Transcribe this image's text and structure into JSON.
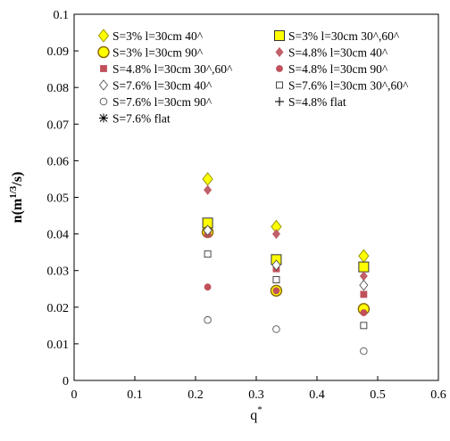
{
  "chart_data": {
    "type": "scatter",
    "xlabel": "q",
    "xlabel_sup": "*",
    "ylabel": "n(m",
    "ylabel_sup": "1/3",
    "ylabel_end": "/s)",
    "xlim": [
      0,
      0.6
    ],
    "ylim": [
      0,
      0.1
    ],
    "x_ticks": [
      "0",
      "0.1",
      "0.2",
      "0.3",
      "0.4",
      "0.5",
      "0.6"
    ],
    "y_ticks": [
      "0",
      "0.01",
      "0.02",
      "0.03",
      "0.04",
      "0.05",
      "0.06",
      "0.07",
      "0.08",
      "0.09",
      "0.1"
    ],
    "grid": false,
    "legend_position": "top",
    "series": [
      {
        "name": "S=3% l=30cm 40^",
        "marker": "diamond",
        "fill": "#ffff00",
        "stroke": "#999900",
        "x": [
          0.22,
          0.333,
          0.477
        ],
        "y": [
          0.055,
          0.042,
          0.034
        ]
      },
      {
        "name": "S=3% l=30cm 30^,60^",
        "marker": "square",
        "fill": "#ffff00",
        "stroke": "#333333",
        "x": [
          0.22,
          0.333,
          0.477
        ],
        "y": [
          0.043,
          0.033,
          0.031
        ]
      },
      {
        "name": "S=3% l=30cm 90^",
        "marker": "circle",
        "fill": "#ffff00",
        "stroke": "#886600",
        "x": [
          0.22,
          0.333,
          0.477
        ],
        "y": [
          0.0405,
          0.0245,
          0.0195
        ]
      },
      {
        "name": "S=4.8% l=30cm 40^",
        "marker": "diamond-small",
        "fill": "#c0606a",
        "stroke": "#c0606a",
        "x": [
          0.22,
          0.333,
          0.477
        ],
        "y": [
          0.052,
          0.04,
          0.0285
        ]
      },
      {
        "name": "S=4.8% l=30cm 30^,60^",
        "marker": "square-small",
        "fill": "#c0505a",
        "stroke": "#c0505a",
        "x": [
          0.22,
          0.333,
          0.477
        ],
        "y": [
          0.04,
          0.0305,
          0.0235
        ]
      },
      {
        "name": "S=4.8% l=30cm 90^",
        "marker": "circle-small",
        "fill": "#c0505a",
        "stroke": "#c0505a",
        "x": [
          0.22,
          0.333,
          0.477
        ],
        "y": [
          0.0255,
          0.0245,
          0.0185
        ]
      },
      {
        "name": "S=7.6% l=30cm 40^",
        "marker": "diamond-open",
        "fill": "#ffffff",
        "stroke": "#555555",
        "x": [
          0.22,
          0.333,
          0.477
        ],
        "y": [
          0.041,
          0.0315,
          0.026
        ]
      },
      {
        "name": "S=7.6% l=30cm 30^,60^",
        "marker": "square-open",
        "fill": "#ffffff",
        "stroke": "#333333",
        "x": [
          0.22,
          0.333,
          0.477
        ],
        "y": [
          0.0345,
          0.0275,
          0.015
        ]
      },
      {
        "name": "S=7.6% l=30cm 90^",
        "marker": "circle-open",
        "fill": "#ffffff",
        "stroke": "#555555",
        "x": [
          0.22,
          0.333,
          0.477
        ],
        "y": [
          0.0165,
          0.014,
          0.008
        ]
      },
      {
        "name": "S=4.8% flat",
        "marker": "plus",
        "fill": "none",
        "stroke": "#000000",
        "x": [],
        "y": []
      },
      {
        "name": "S=7.6% flat",
        "marker": "star",
        "fill": "none",
        "stroke": "#000000",
        "x": [],
        "y": []
      }
    ]
  }
}
